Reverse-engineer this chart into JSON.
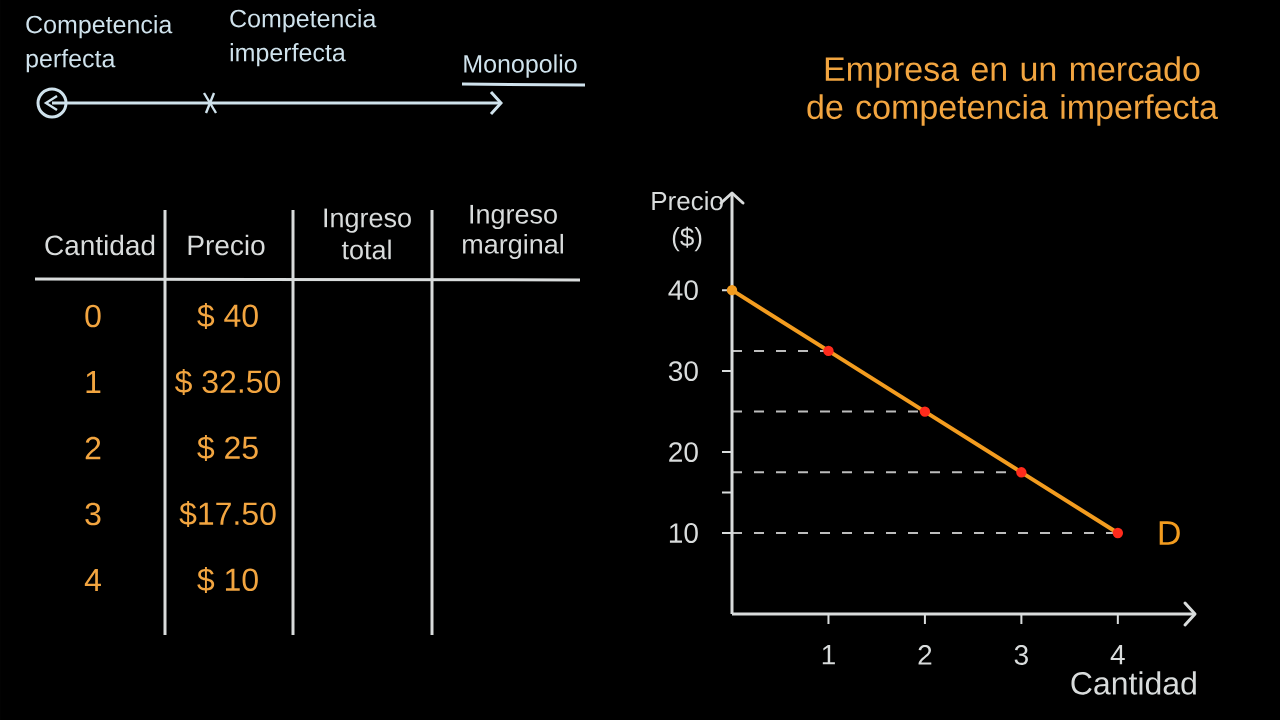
{
  "chart_data": {
    "type": "line",
    "title": "Empresa en un mercado de competencia imperfecta",
    "xlabel": "Cantidad",
    "ylabel": "Precio ($)",
    "x": [
      0,
      1,
      2,
      3,
      4
    ],
    "series": [
      {
        "name": "D",
        "color": "#f39c1f",
        "colors": [
          "#f39c1f",
          "#ff2b1c",
          "#ff2b1c",
          "#ff2b1c",
          "#ff2b1c"
        ],
        "values": [
          40,
          32.5,
          25,
          17.5,
          10
        ]
      }
    ],
    "xlim": [
      0,
      4.8
    ],
    "ylim": [
      0,
      52
    ],
    "xticks": [
      1,
      2,
      3,
      4
    ],
    "yticks": [
      10,
      {
        "value": 15,
        "label": null
      },
      20,
      30,
      40
    ],
    "ref_lines": [
      {
        "axis": "y",
        "value": 32.5,
        "color": "#bdbdbd",
        "line_style": "dashed"
      },
      {
        "axis": "y",
        "value": 25,
        "color": "#bdbdbd",
        "line_style": "dashed"
      },
      {
        "axis": "y",
        "value": 17.5,
        "color": "#bdbdbd",
        "line_style": "dashed"
      },
      {
        "axis": "y",
        "value": 10,
        "color": "#bdbdbd",
        "line_style": "dashed"
      }
    ],
    "marker": "circle",
    "line_style": "solid",
    "annotations": [
      "Competencia perfecta",
      "Competencia imperfecta",
      "Monopolio",
      "Cantidad",
      "Precio",
      "Ingreso total",
      "Ingreso marginal",
      "0",
      "1",
      "2",
      "3",
      "4",
      "$ 40",
      "$ 32.50",
      "$ 25",
      "$17.50",
      "$ 10"
    ]
  }
}
